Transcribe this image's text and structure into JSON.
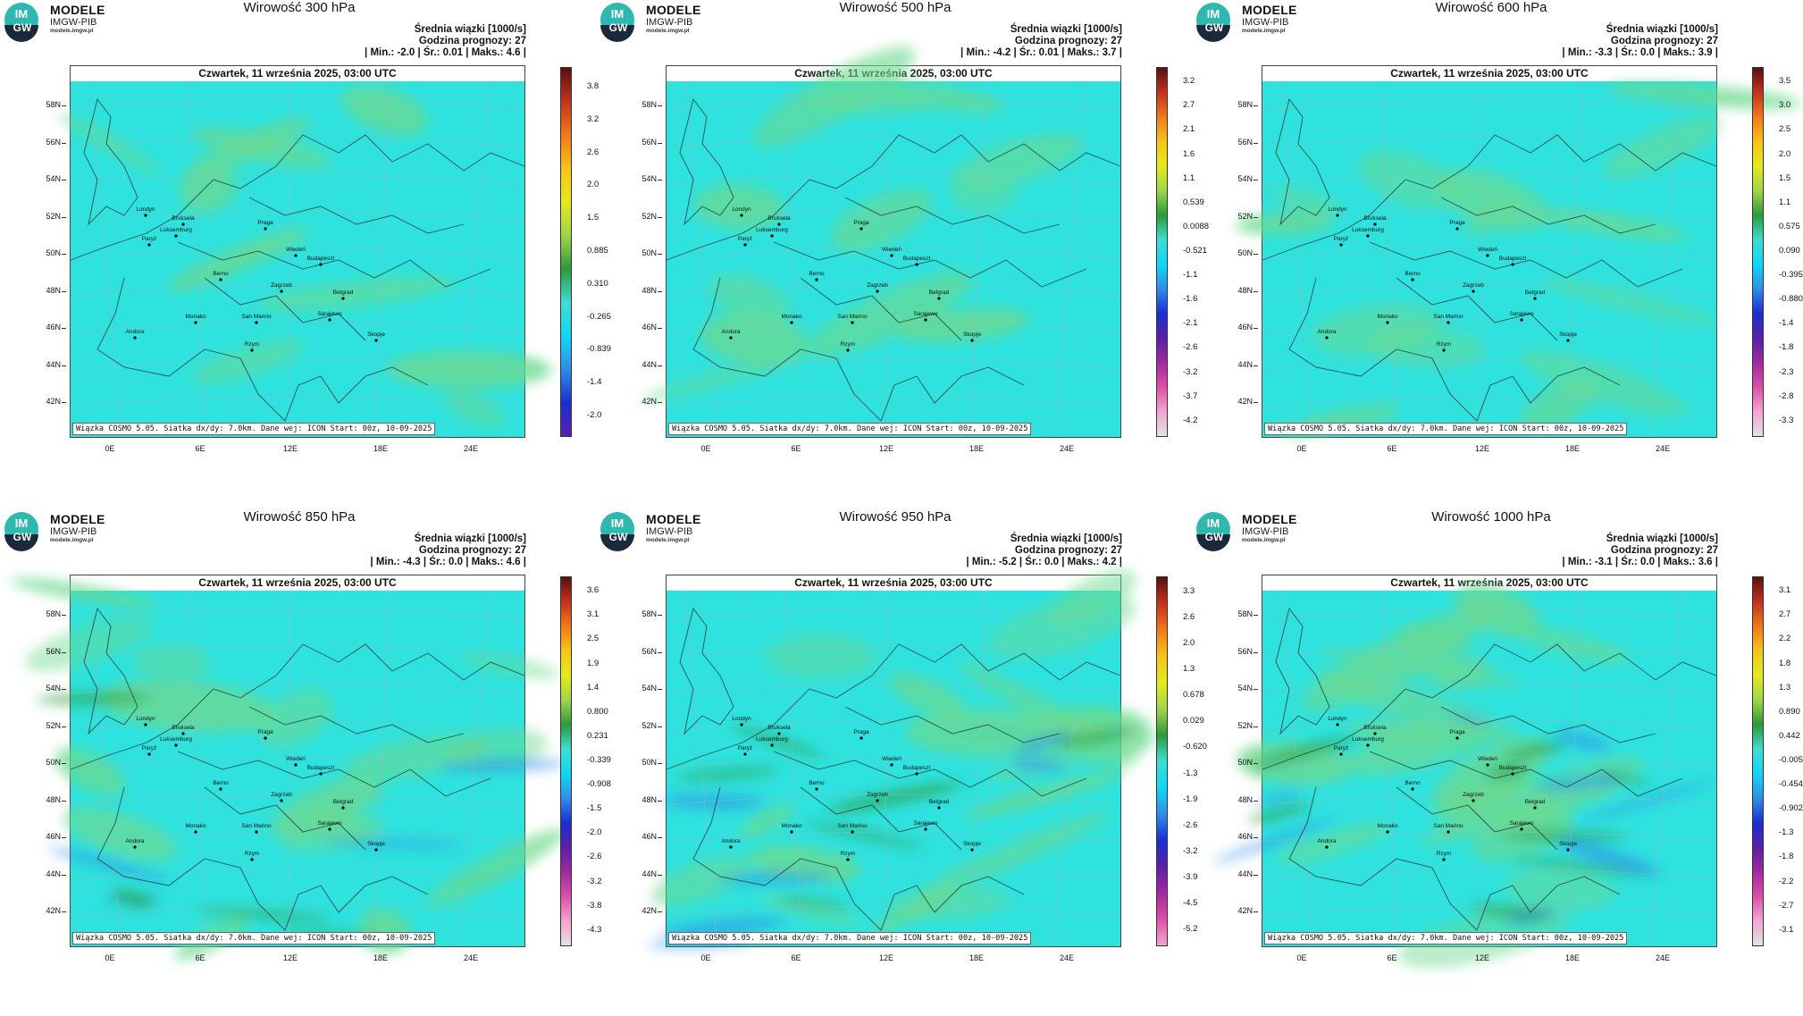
{
  "logo": {
    "line1": "MODELE",
    "line2": "IMGW-PIB",
    "url": "modele.imgw.pl",
    "badge_top": "IM",
    "badge_bottom": "GW"
  },
  "common": {
    "stat_title": "Średnia wiązki [1000/s]",
    "forecast_hour": "Godzina prognozy: 27",
    "date_line": "Czwartek, 11 września 2025, 03:00 UTC",
    "footer": "Wiązka COSMO 5.05. Siatka dx/dy: 7.0km. Dane wej: ICON Start: 00z, 10-09-2025",
    "lat_labels": [
      "58N",
      "56N",
      "54N",
      "52N",
      "50N",
      "48N",
      "46N",
      "44N",
      "42N"
    ],
    "lon_labels": [
      "0E",
      "6E",
      "12E",
      "18E",
      "24E"
    ],
    "cities": [
      "Londyn",
      "Bruksela",
      "Luksemburg",
      "Paryż",
      "Praga",
      "Wiedeń",
      "Budapeszt",
      "Berno",
      "Zagrzeb",
      "Belgrad",
      "Sarajewo",
      "San Marino",
      "Monako",
      "Andora",
      "Skopje",
      "Rzym"
    ]
  },
  "colors": {
    "field_base": "#2fe2de",
    "field_green": "#6cd98f",
    "land_border": "#1f3b3b",
    "accent": "#00e5ff"
  },
  "panels": [
    {
      "title": "Wirowość 300 hPa",
      "stats": "| Min.:    -2.0 | Śr.:    0.01 | Maks.:    4.6 |",
      "ticks": [
        "3.8",
        "3.2",
        "2.6",
        "2.0",
        "1.5",
        "0.885",
        "0.310",
        "-0.265",
        "-0.839",
        "-1.4",
        "-2.0"
      ]
    },
    {
      "title": "Wirowość 500 hPa",
      "stats": "| Min.:    -4.2 | Śr.:    0.01 | Maks.:    3.7 |",
      "ticks": [
        "3.2",
        "2.7",
        "2.1",
        "1.6",
        "1.1",
        "0.539",
        "0.0088",
        "-0.521",
        "-1.1",
        "-1.6",
        "-2.1",
        "-2.6",
        "-3.2",
        "-3.7",
        "-4.2"
      ]
    },
    {
      "title": "Wirowość 600 hPa",
      "stats": "| Min.:    -3.3 | Śr.:    0.0 | Maks.:    3.9 |",
      "ticks": [
        "3.5",
        "3.0",
        "2.5",
        "2.0",
        "1.5",
        "1.1",
        "0.575",
        "0.090",
        "-0.395",
        "-0.880",
        "-1.4",
        "-1.8",
        "-2.3",
        "-2.8",
        "-3.3"
      ]
    },
    {
      "title": "Wirowość 850 hPa",
      "stats": "| Min.:    -4.3 | Śr.:    0.0 | Maks.:    4.6 |",
      "ticks": [
        "3.6",
        "3.1",
        "2.5",
        "1.9",
        "1.4",
        "0.800",
        "0.231",
        "-0.339",
        "-0.908",
        "-1.5",
        "-2.0",
        "-2.6",
        "-3.2",
        "-3.8",
        "-4.3"
      ]
    },
    {
      "title": "Wirowość 950 hPa",
      "stats": "| Min.:    -5.2 | Śr.:    0.0 | Maks.:    4.2 |",
      "ticks": [
        "3.3",
        "2.6",
        "2.0",
        "1.3",
        "0.678",
        "0.029",
        "-0.620",
        "-1.3",
        "-1.9",
        "-2.6",
        "-3.2",
        "-3.9",
        "-4.5",
        "-5.2"
      ]
    },
    {
      "title": "Wirowość 1000 hPa",
      "stats": "| Min.:    -3.1 | Śr.:    0.0 | Maks.:    3.6 |",
      "ticks": [
        "3.1",
        "2.7",
        "2.2",
        "1.8",
        "1.3",
        "0.890",
        "0.442",
        "-0.005",
        "-0.454",
        "-0.902",
        "-1.3",
        "-1.8",
        "-2.2",
        "-2.7",
        "-3.1"
      ]
    }
  ]
}
